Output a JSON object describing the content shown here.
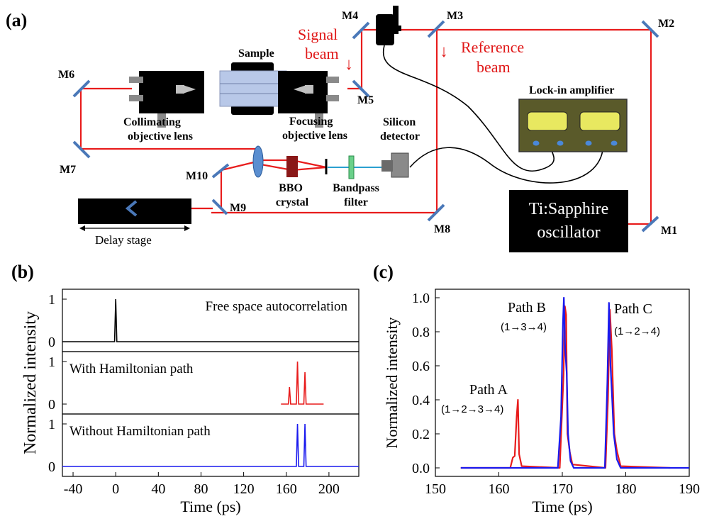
{
  "panel_labels": {
    "a": "(a)",
    "b": "(b)",
    "c": "(c)"
  },
  "setup": {
    "mirrors": [
      "M1",
      "M2",
      "M3",
      "M4",
      "M5",
      "M6",
      "M7",
      "M8",
      "M9",
      "M10"
    ],
    "sample_label": "Sample",
    "collimating_label": [
      "Collimating",
      "objective lens"
    ],
    "focusing_label": [
      "Focusing",
      "objective lens"
    ],
    "silicon_label": [
      "Silicon",
      "detector"
    ],
    "bbo_label": [
      "BBO",
      "crystal"
    ],
    "bandpass_label": [
      "Bandpass",
      "filter"
    ],
    "lockin_label": "Lock-in amplifier",
    "oscillator_label": [
      "Ti:Sapphire",
      "oscillator"
    ],
    "delay_label": "Delay stage",
    "signal_label": [
      "Signal",
      "beam"
    ],
    "reference_label": [
      "Reference",
      "beam"
    ],
    "arrow_glyph": "↓"
  },
  "colors": {
    "beam": "#e81c1c",
    "ref_series": "#000000",
    "ham_series": "#e81c1c",
    "noham_series": "#1a1aee",
    "setup_box": "#000000",
    "lockin_fill": "#5a5a2a",
    "lockin_display": "#e8e860",
    "sample_fill": "#b8c8e8"
  },
  "chart_data": [
    {
      "type": "line",
      "panel": "b",
      "ylabel": "Normalized intensity",
      "xlabel": "Time (ps)",
      "xlim": [
        -50,
        228
      ],
      "xticks": [
        -40,
        0,
        40,
        80,
        120,
        160,
        200
      ],
      "subplots": [
        {
          "annotation": "Free space autocorrelation",
          "yticks": [
            0,
            1
          ],
          "series": [
            {
              "color": "#000000",
              "line_range": [
                -50,
                228
              ],
              "peaks": [
                [
                  0,
                  1.0
                ]
              ]
            }
          ]
        },
        {
          "annotation": "With Hamiltonian path",
          "yticks": [
            0,
            1
          ],
          "series": [
            {
              "color": "#e81c1c",
              "line_range": [
                155,
                195
              ],
              "peaks": [
                [
                  163,
                  0.4
                ],
                [
                  170.5,
                  1.0
                ],
                [
                  177.5,
                  0.75
                ]
              ]
            }
          ]
        },
        {
          "annotation": "Without Hamiltonian path",
          "yticks": [
            0,
            1
          ],
          "series": [
            {
              "color": "#1a1aee",
              "line_range": [
                -50,
                228
              ],
              "peaks": [
                [
                  170.5,
                  1.0
                ],
                [
                  177.5,
                  1.0
                ]
              ]
            }
          ]
        }
      ]
    },
    {
      "type": "line",
      "panel": "c",
      "ylabel": "Normalized intensity",
      "xlabel": "Time (ps)",
      "xlim": [
        150,
        190
      ],
      "ylim": [
        -0.05,
        1.05
      ],
      "xticks": [
        150,
        160,
        170,
        180,
        190
      ],
      "yticks": [
        "0.0",
        "0.2",
        "0.4",
        "0.6",
        "0.8",
        "1.0"
      ],
      "annotations": [
        {
          "title": "Path A",
          "sub": "(1→2→3→4)"
        },
        {
          "title": "Path B",
          "sub": "(1→3→4)"
        },
        {
          "title": "Path C",
          "sub": "(1→2→4)"
        }
      ],
      "series": [
        {
          "color": "#e81c1c",
          "points": [
            [
              154,
              0
            ],
            [
              161.8,
              0
            ],
            [
              162.2,
              0.06
            ],
            [
              162.5,
              0.07
            ],
            [
              162.8,
              0.3
            ],
            [
              163,
              0.4
            ],
            [
              163.2,
              0.08
            ],
            [
              163.6,
              0.01
            ],
            [
              169.6,
              0.0
            ],
            [
              170.2,
              0.55
            ],
            [
              170.4,
              0.95
            ],
            [
              170.6,
              0.9
            ],
            [
              170.8,
              0.2
            ],
            [
              171.2,
              0.09
            ],
            [
              171.6,
              0.02
            ],
            [
              176.8,
              0.0
            ],
            [
              177.2,
              0.4
            ],
            [
              177.5,
              0.93
            ],
            [
              177.8,
              0.7
            ],
            [
              178.2,
              0.2
            ],
            [
              178.6,
              0.1
            ],
            [
              179.2,
              0.01
            ],
            [
              187,
              0
            ]
          ]
        },
        {
          "color": "#1a1aee",
          "points": [
            [
              154,
              0
            ],
            [
              169.3,
              0
            ],
            [
              169.8,
              0.3
            ],
            [
              170.1,
              0.85
            ],
            [
              170.25,
              1.0
            ],
            [
              170.45,
              0.7
            ],
            [
              170.7,
              0.55
            ],
            [
              170.9,
              0.2
            ],
            [
              171.3,
              0.04
            ],
            [
              171.8,
              0
            ],
            [
              176.7,
              0
            ],
            [
              177.1,
              0.5
            ],
            [
              177.35,
              0.97
            ],
            [
              177.6,
              0.6
            ],
            [
              177.8,
              0.45
            ],
            [
              178.1,
              0.2
            ],
            [
              178.6,
              0.05
            ],
            [
              179.2,
              0
            ],
            [
              190,
              0
            ]
          ]
        }
      ]
    }
  ]
}
